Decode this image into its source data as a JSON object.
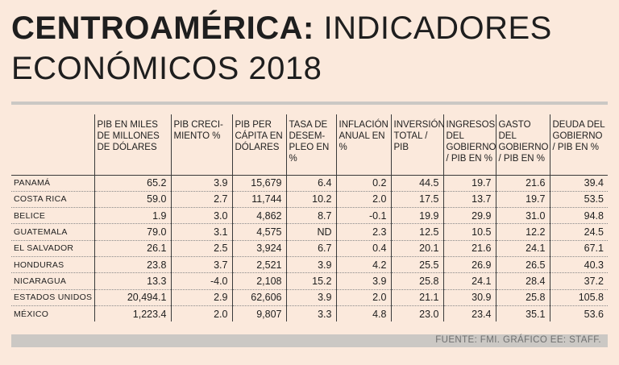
{
  "title": {
    "bold": "CENTROAMÉRICA:",
    "rest": "INDICADORES ECONÓMICOS 2018"
  },
  "columns": [
    "",
    "PIB EN MILES DE MILLONES DE DÓLARES",
    "PIB CRECI- MIENTO %",
    "PIB PER CÁPITA EN DÓLARES",
    "TASA DE DESEM- PLEO EN %",
    "INFLACIÓN ANUAL EN %",
    "INVERSIÓN TOTAL / PIB",
    "INGRESOS DEL GOBIERNO / PIB EN %",
    "GASTO DEL GOBIERNO / PIB EN %",
    "DEUDA DEL GOBIERNO / PIB EN %"
  ],
  "rows": [
    [
      "PANAMÁ",
      "65.2",
      "3.9",
      "15,679",
      "6.4",
      "0.2",
      "44.5",
      "19.7",
      "21.6",
      "39.4"
    ],
    [
      "COSTA RICA",
      "59.0",
      "2.7",
      "11,744",
      "10.2",
      "2.0",
      "17.5",
      "13.7",
      "19.7",
      "53.5"
    ],
    [
      "BELICE",
      "1.9",
      "3.0",
      "4,862",
      "8.7",
      "-0.1",
      "19.9",
      "29.9",
      "31.0",
      "94.8"
    ],
    [
      "GUATEMALA",
      "79.0",
      "3.1",
      "4,575",
      "ND",
      "2.3",
      "12.5",
      "10.5",
      "12.2",
      "24.5"
    ],
    [
      "EL SALVADOR",
      "26.1",
      "2.5",
      "3,924",
      "6.7",
      "0.4",
      "20.1",
      "21.6",
      "24.1",
      "67.1"
    ],
    [
      "HONDURAS",
      "23.8",
      "3.7",
      "2,521",
      "3.9",
      "4.2",
      "25.5",
      "26.9",
      "26.5",
      "40.3"
    ],
    [
      "NICARAGUA",
      "13.3",
      "-4.0",
      "2,108",
      "15.2",
      "3.9",
      "25.8",
      "24.1",
      "28.4",
      "37.2"
    ],
    [
      "ESTADOS UNIDOS",
      "20,494.1",
      "2.9",
      "62,606",
      "3.9",
      "2.0",
      "21.1",
      "30.9",
      "25.8",
      "105.8"
    ],
    [
      "MÉXICO",
      "1,223.4",
      "2.0",
      "9,807",
      "3.3",
      "4.8",
      "23.0",
      "23.4",
      "35.1",
      "53.6"
    ]
  ],
  "footer": "FUENTE: FMI. GRÁFICO EE: STAFF."
}
